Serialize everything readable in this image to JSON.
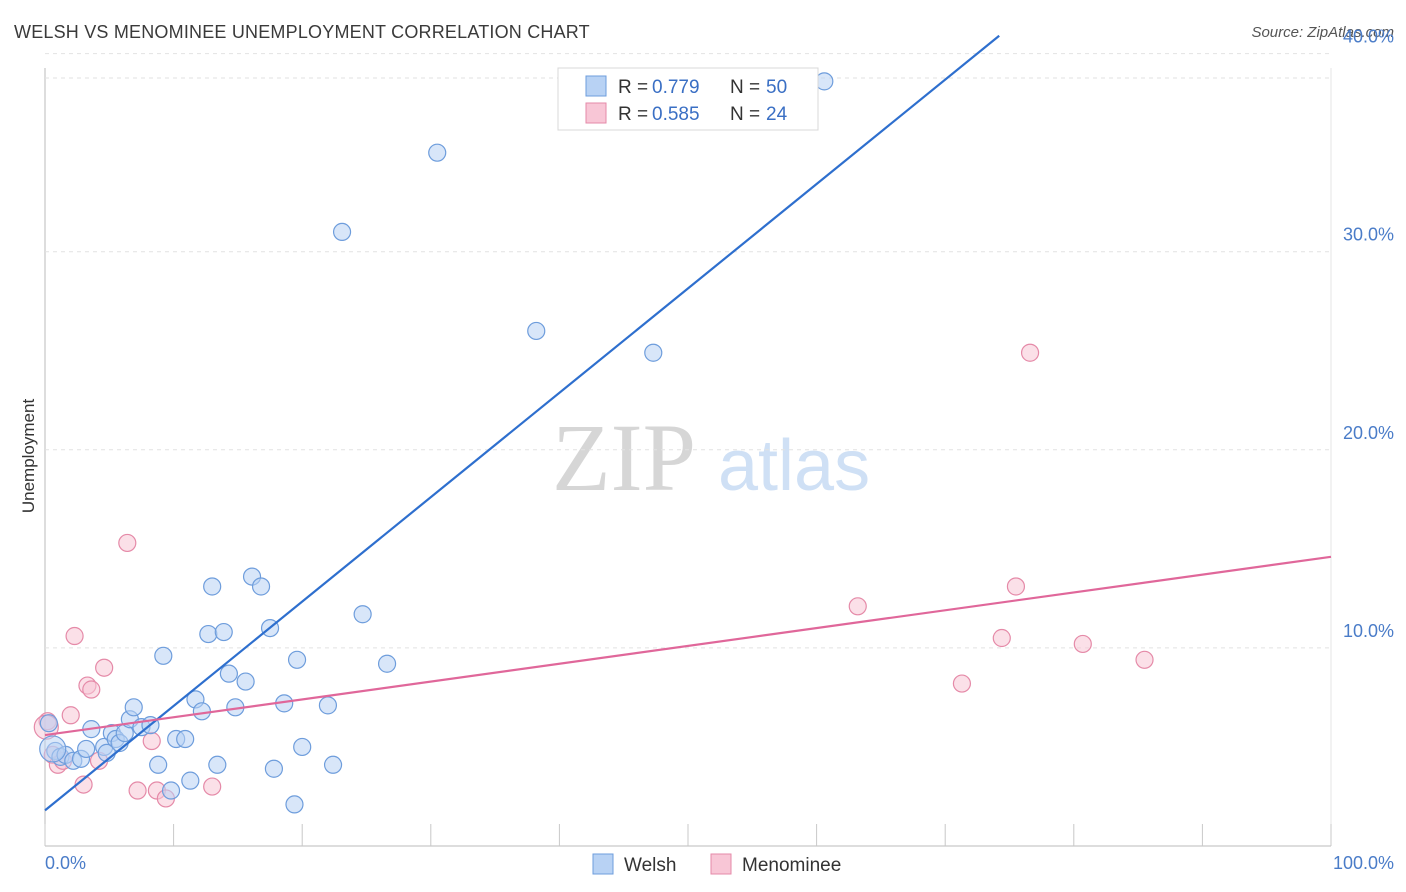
{
  "header": {
    "title": "WELSH VS MENOMINEE UNEMPLOYMENT CORRELATION CHART",
    "source": "Source: ZipAtlas.com"
  },
  "watermark": {
    "zip": "ZIP",
    "atlas": "atlas"
  },
  "colors": {
    "welsh_fill": "#b8d2f4",
    "welsh_stroke": "#6e9ddc",
    "welsh_line": "#2e6fce",
    "menominee_fill": "#f8c6d6",
    "menominee_stroke": "#e58aa8",
    "menominee_line": "#e0679a",
    "tick_label": "#4a7cc8",
    "grid": "#e2e2e2"
  },
  "legend": {
    "items": [
      {
        "r_label": "R = ",
        "r_value": "0.779",
        "n_label": "N = ",
        "n_value": "50"
      },
      {
        "r_label": "R = ",
        "r_value": "0.585",
        "n_label": "N = ",
        "n_value": "24"
      }
    ]
  },
  "chart_data": {
    "type": "scatter",
    "title": "WELSH VS MENOMINEE UNEMPLOYMENT CORRELATION CHART",
    "xlabel": "",
    "ylabel": "Unemployment",
    "xlim": [
      0,
      100
    ],
    "ylim": [
      0,
      42
    ],
    "x_tick_labels": [
      "0.0%",
      "100.0%"
    ],
    "y_ticks": [
      10,
      20,
      30,
      40
    ],
    "y_tick_labels": [
      "10.0%",
      "20.0%",
      "30.0%",
      "40.0%"
    ],
    "grid": true,
    "series": [
      {
        "name": "Welsh",
        "trend": {
          "x": [
            0,
            74.2
          ],
          "y": [
            1.8,
            40.9
          ]
        },
        "points": [
          {
            "x": 0.3,
            "y": 6.2
          },
          {
            "x": 0.8,
            "y": 4.8
          },
          {
            "x": 1.2,
            "y": 4.5
          },
          {
            "x": 1.6,
            "y": 4.6
          },
          {
            "x": 2.2,
            "y": 4.3
          },
          {
            "x": 2.8,
            "y": 4.4
          },
          {
            "x": 3.2,
            "y": 4.9
          },
          {
            "x": 3.6,
            "y": 5.9
          },
          {
            "x": 4.6,
            "y": 5.0
          },
          {
            "x": 4.8,
            "y": 4.7
          },
          {
            "x": 5.2,
            "y": 5.7
          },
          {
            "x": 5.5,
            "y": 5.4
          },
          {
            "x": 5.8,
            "y": 5.2
          },
          {
            "x": 6.2,
            "y": 5.7
          },
          {
            "x": 6.6,
            "y": 6.4
          },
          {
            "x": 6.9,
            "y": 7.0
          },
          {
            "x": 7.5,
            "y": 6.0
          },
          {
            "x": 8.2,
            "y": 6.1
          },
          {
            "x": 8.8,
            "y": 4.1
          },
          {
            "x": 9.2,
            "y": 9.6
          },
          {
            "x": 9.8,
            "y": 2.8
          },
          {
            "x": 10.2,
            "y": 5.4
          },
          {
            "x": 10.9,
            "y": 5.4
          },
          {
            "x": 11.3,
            "y": 3.3
          },
          {
            "x": 11.7,
            "y": 7.4
          },
          {
            "x": 12.2,
            "y": 6.8
          },
          {
            "x": 12.7,
            "y": 10.7
          },
          {
            "x": 13.0,
            "y": 13.1
          },
          {
            "x": 13.4,
            "y": 4.1
          },
          {
            "x": 13.9,
            "y": 10.8
          },
          {
            "x": 14.3,
            "y": 8.7
          },
          {
            "x": 14.8,
            "y": 7.0
          },
          {
            "x": 15.6,
            "y": 8.3
          },
          {
            "x": 16.1,
            "y": 13.6
          },
          {
            "x": 16.8,
            "y": 13.1
          },
          {
            "x": 17.5,
            "y": 11.0
          },
          {
            "x": 17.8,
            "y": 3.9
          },
          {
            "x": 18.6,
            "y": 7.2
          },
          {
            "x": 19.4,
            "y": 2.1
          },
          {
            "x": 19.6,
            "y": 9.4
          },
          {
            "x": 20.0,
            "y": 5.0
          },
          {
            "x": 22.0,
            "y": 7.1
          },
          {
            "x": 22.4,
            "y": 4.1
          },
          {
            "x": 23.1,
            "y": 31.0
          },
          {
            "x": 24.7,
            "y": 11.7
          },
          {
            "x": 26.6,
            "y": 9.2
          },
          {
            "x": 30.5,
            "y": 35.0
          },
          {
            "x": 38.2,
            "y": 26.0
          },
          {
            "x": 47.3,
            "y": 24.9
          },
          {
            "x": 60.6,
            "y": 38.6
          }
        ]
      },
      {
        "name": "Menominee",
        "trend": {
          "x": [
            0,
            100
          ],
          "y": [
            5.6,
            14.6
          ]
        },
        "points": [
          {
            "x": 0.2,
            "y": 6.3
          },
          {
            "x": 0.6,
            "y": 4.6
          },
          {
            "x": 1.0,
            "y": 4.1
          },
          {
            "x": 1.4,
            "y": 4.3
          },
          {
            "x": 2.0,
            "y": 6.6
          },
          {
            "x": 2.3,
            "y": 10.6
          },
          {
            "x": 3.0,
            "y": 3.1
          },
          {
            "x": 3.3,
            "y": 8.1
          },
          {
            "x": 3.6,
            "y": 7.9
          },
          {
            "x": 4.2,
            "y": 4.3
          },
          {
            "x": 4.6,
            "y": 9.0
          },
          {
            "x": 6.4,
            "y": 15.3
          },
          {
            "x": 7.2,
            "y": 2.8
          },
          {
            "x": 8.3,
            "y": 5.3
          },
          {
            "x": 8.7,
            "y": 2.8
          },
          {
            "x": 9.4,
            "y": 2.4
          },
          {
            "x": 13.0,
            "y": 3.0
          },
          {
            "x": 63.2,
            "y": 12.1
          },
          {
            "x": 71.3,
            "y": 8.2
          },
          {
            "x": 74.4,
            "y": 10.5
          },
          {
            "x": 75.5,
            "y": 13.1
          },
          {
            "x": 76.6,
            "y": 24.9
          },
          {
            "x": 80.7,
            "y": 10.2
          },
          {
            "x": 85.5,
            "y": 9.4
          }
        ]
      }
    ]
  }
}
